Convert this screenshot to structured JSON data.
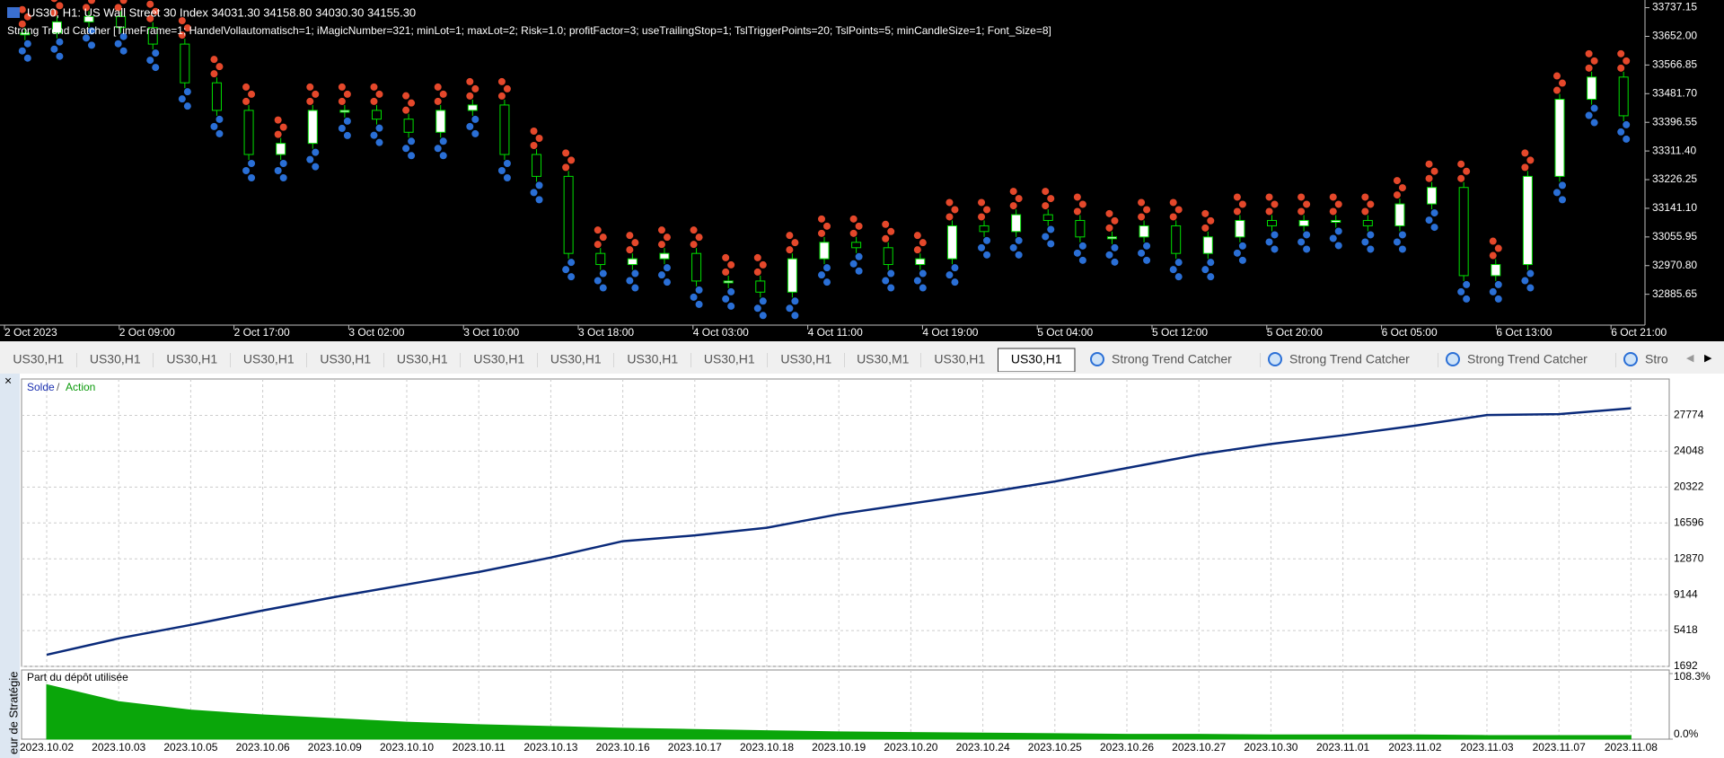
{
  "header": {
    "symbol_line": "US30, H1:  US Wall Street 30 Index  34031.30 34158.80 34030.30 34155.30",
    "indicator_line": "Strong Trend Catcher [TimeFrame=1; HandelVollautomatisch=1; iMagicNumber=321; minLot=1; maxLot=2; Risk=1.0; profitFactor=3; useTrailingStop=1; TslTriggerPoints=20; TslPoints=5; minCandleSize=1; Font_Size=8]"
  },
  "price_chart": {
    "type": "candlestick",
    "ylim": [
      32794,
      33760
    ],
    "yticks": [
      {
        "value": 33737.15,
        "label": "33737.15"
      },
      {
        "value": 33652,
        "label": "33652.00"
      },
      {
        "value": 33566.85,
        "label": "33566.85"
      },
      {
        "value": 33481.7,
        "label": "33481.70"
      },
      {
        "value": 33396.55,
        "label": "33396.55"
      },
      {
        "value": 33311.4,
        "label": "33311.40"
      },
      {
        "value": 33226.25,
        "label": "33226.25"
      },
      {
        "value": 33141.1,
        "label": "33141.10"
      },
      {
        "value": 33055.95,
        "label": "33055.95"
      },
      {
        "value": 32970.8,
        "label": "32970.80"
      },
      {
        "value": 32885.65,
        "label": "32885.65"
      }
    ],
    "xticks": [
      "2 Oct 2023",
      "2 Oct 09:00",
      "2 Oct 17:00",
      "3 Oct 02:00",
      "3 Oct 10:00",
      "3 Oct 18:00",
      "4 Oct 03:00",
      "4 Oct 11:00",
      "4 Oct 19:00",
      "5 Oct 04:00",
      "5 Oct 12:00",
      "5 Oct 20:00",
      "6 Oct 05:00",
      "6 Oct 13:00",
      "6 Oct 21:00"
    ],
    "closes": [
      33662,
      33695,
      33711,
      33678,
      33629,
      33514,
      33432,
      33301,
      33334,
      33432,
      33432,
      33406,
      33367,
      33432,
      33448,
      33301,
      33236,
      33007,
      32974,
      32991,
      33007,
      32925,
      32925,
      32892,
      32991,
      33040,
      33024,
      32974,
      32991,
      33089,
      33072,
      33122,
      33105,
      33056,
      33056,
      33089,
      33007,
      33056,
      33105,
      33089,
      33105,
      33105,
      33089,
      33154,
      33203,
      32941,
      32974,
      33236,
      33465,
      33531,
      33416
    ]
  },
  "tabs": [
    "US30,H1",
    "US30,H1",
    "US30,H1",
    "US30,H1",
    "US30,H1",
    "US30,H1",
    "US30,H1",
    "US30,H1",
    "US30,H1",
    "US30,H1",
    "US30,H1",
    "US30,M1",
    "US30,H1",
    "US30,H1",
    "Strong Trend Catcher",
    "Strong Trend Catcher",
    "Strong Trend Catcher",
    "Stro"
  ],
  "active_tab": 13,
  "tester": {
    "side_title": "eur de Stratégie",
    "balance_chart": {
      "type": "line",
      "legend_balance": "Solde",
      "legend_sep": "/",
      "legend_equity": "Action",
      "color": "#0a2a7a",
      "ylim": [
        1692,
        31549
      ],
      "yticks": [
        27774,
        24048,
        20322,
        16596,
        12870,
        9144,
        5418,
        1692
      ],
      "grid": true,
      "values": [
        2900,
        4600,
        6000,
        7500,
        8900,
        10200,
        11500,
        13000,
        14700,
        15300,
        16100,
        17500,
        18600,
        19700,
        20900,
        22300,
        23700,
        24800,
        25700,
        26700,
        27800,
        27900,
        28500
      ]
    },
    "deposit_chart": {
      "type": "area",
      "title": "Part du dépôt utilisée",
      "color": "#0aa60a",
      "ylim": [
        0,
        108.3
      ],
      "yticks": [
        {
          "value": 108.3,
          "label": "108.3%"
        },
        {
          "value": 0,
          "label": "0.0%"
        }
      ],
      "values": [
        90,
        62,
        48,
        40,
        34,
        28,
        24,
        21,
        18,
        16,
        14,
        12,
        11,
        10,
        9,
        8,
        8,
        7,
        7,
        7,
        6,
        6,
        6
      ]
    },
    "dates": [
      "2023.10.02",
      "2023.10.03",
      "2023.10.05",
      "2023.10.06",
      "2023.10.09",
      "2023.10.10",
      "2023.10.11",
      "2023.10.13",
      "2023.10.16",
      "2023.10.17",
      "2023.10.18",
      "2023.10.19",
      "2023.10.20",
      "2023.10.24",
      "2023.10.25",
      "2023.10.26",
      "2023.10.27",
      "2023.10.30",
      "2023.11.01",
      "2023.11.02",
      "2023.11.03",
      "2023.11.07",
      "2023.11.08"
    ]
  }
}
